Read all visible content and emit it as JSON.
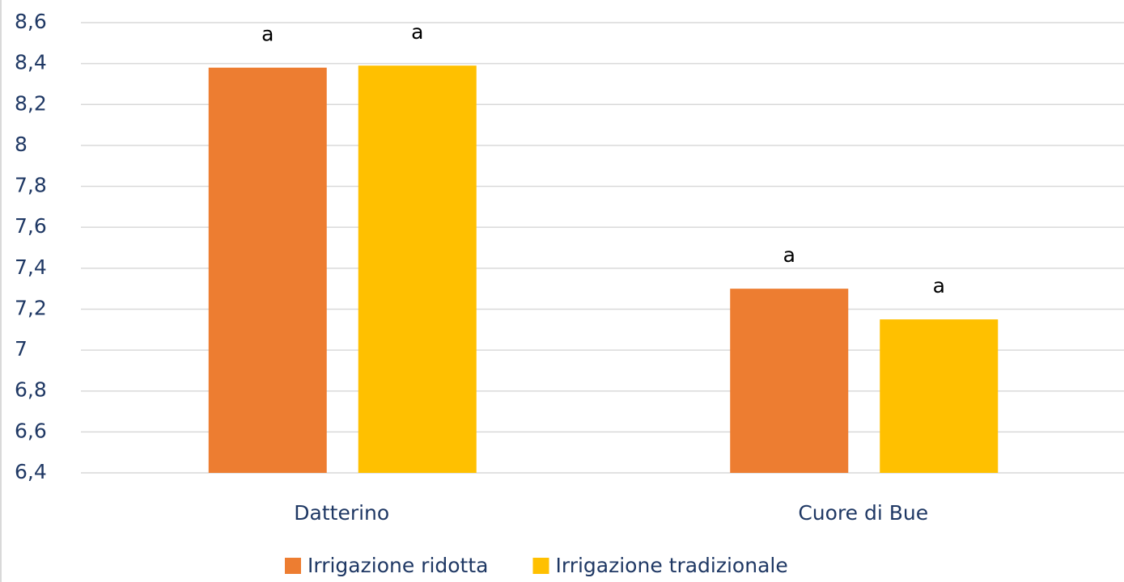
{
  "chart_data": {
    "type": "bar",
    "categories": [
      "Datterino",
      "Cuore di Bue"
    ],
    "series": [
      {
        "name": "Irrigazione ridotta",
        "color": "#ed7d31",
        "values": [
          8.38,
          7.3
        ],
        "labels": [
          "a",
          "a"
        ]
      },
      {
        "name": "Irrigazione tradizionale",
        "color": "#ffc000",
        "values": [
          8.39,
          7.15
        ],
        "labels": [
          "a",
          "a"
        ]
      }
    ],
    "ylim": [
      6.4,
      8.6
    ],
    "yticks": [
      {
        "value": 6.4,
        "label": "6,4"
      },
      {
        "value": 6.6,
        "label": "6,6"
      },
      {
        "value": 6.8,
        "label": "6,8"
      },
      7,
      {
        "value": 7.2,
        "label": "7,2"
      },
      {
        "value": 7.4,
        "label": "7,4"
      },
      {
        "value": 7.6,
        "label": "7,6"
      },
      {
        "value": 7.8,
        "label": "7,8"
      },
      8,
      {
        "value": 8.2,
        "label": "8,2"
      },
      {
        "value": 8.4,
        "label": "8,4"
      },
      {
        "value": 8.6,
        "label": "8,6"
      }
    ],
    "grid": true,
    "legend": "bottom"
  }
}
